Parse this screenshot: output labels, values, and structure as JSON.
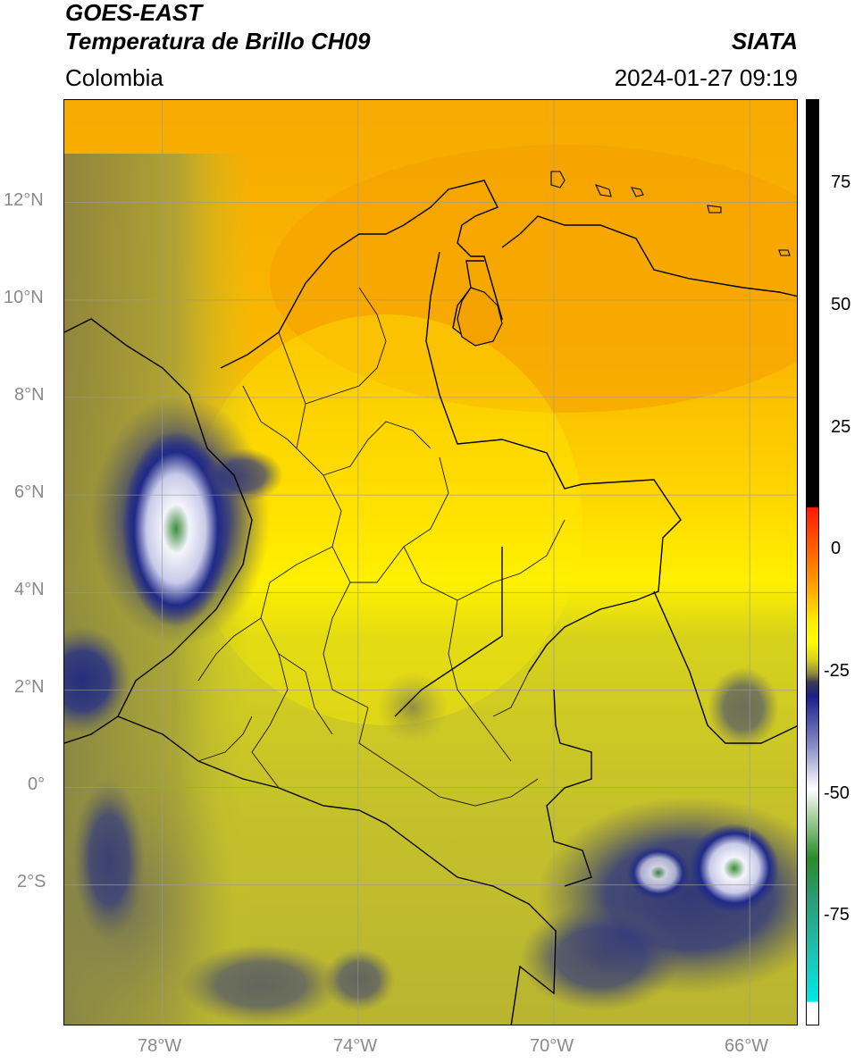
{
  "header": {
    "line1": "GOES-EAST",
    "line2": "Temperatura de Brillo CH09",
    "region": "Colombia",
    "source": "SIATA",
    "datetime": "2024-01-27 09:19"
  },
  "map": {
    "lat_range": [
      -4.9,
      14.1
    ],
    "lon_range": [
      -80.0,
      -65.0
    ],
    "lat_ticks": [
      {
        "value": 12,
        "label": "12°N"
      },
      {
        "value": 10,
        "label": "10°N"
      },
      {
        "value": 8,
        "label": "8°N"
      },
      {
        "value": 6,
        "label": "6°N"
      },
      {
        "value": 4,
        "label": "4°N"
      },
      {
        "value": 2,
        "label": "2°N"
      },
      {
        "value": 0,
        "label": "0°"
      },
      {
        "value": -2,
        "label": "2°S"
      }
    ],
    "lon_ticks": [
      {
        "value": -78,
        "label": "78°W"
      },
      {
        "value": -74,
        "label": "74°W"
      },
      {
        "value": -70,
        "label": "70°W"
      },
      {
        "value": -66,
        "label": "66°W"
      }
    ],
    "gridlines": true,
    "colors": {
      "orange": "#f7a800",
      "yellow": "#ffee00",
      "olive": "#c9c41f",
      "dark_olive": "#8d8b3a",
      "navy": "#1c2380",
      "white_cloud": "#f0f0f8",
      "green_core": "#3a8a3a"
    }
  },
  "colorbar": {
    "range": [
      -95,
      90
    ],
    "ticks": [
      {
        "value": 75,
        "label": "75"
      },
      {
        "value": 50,
        "label": "50"
      },
      {
        "value": 25,
        "label": "25"
      },
      {
        "value": 0,
        "label": "0"
      },
      {
        "value": -25,
        "label": "-25"
      },
      {
        "value": -50,
        "label": "-50"
      },
      {
        "value": -75,
        "label": "-75"
      }
    ]
  }
}
